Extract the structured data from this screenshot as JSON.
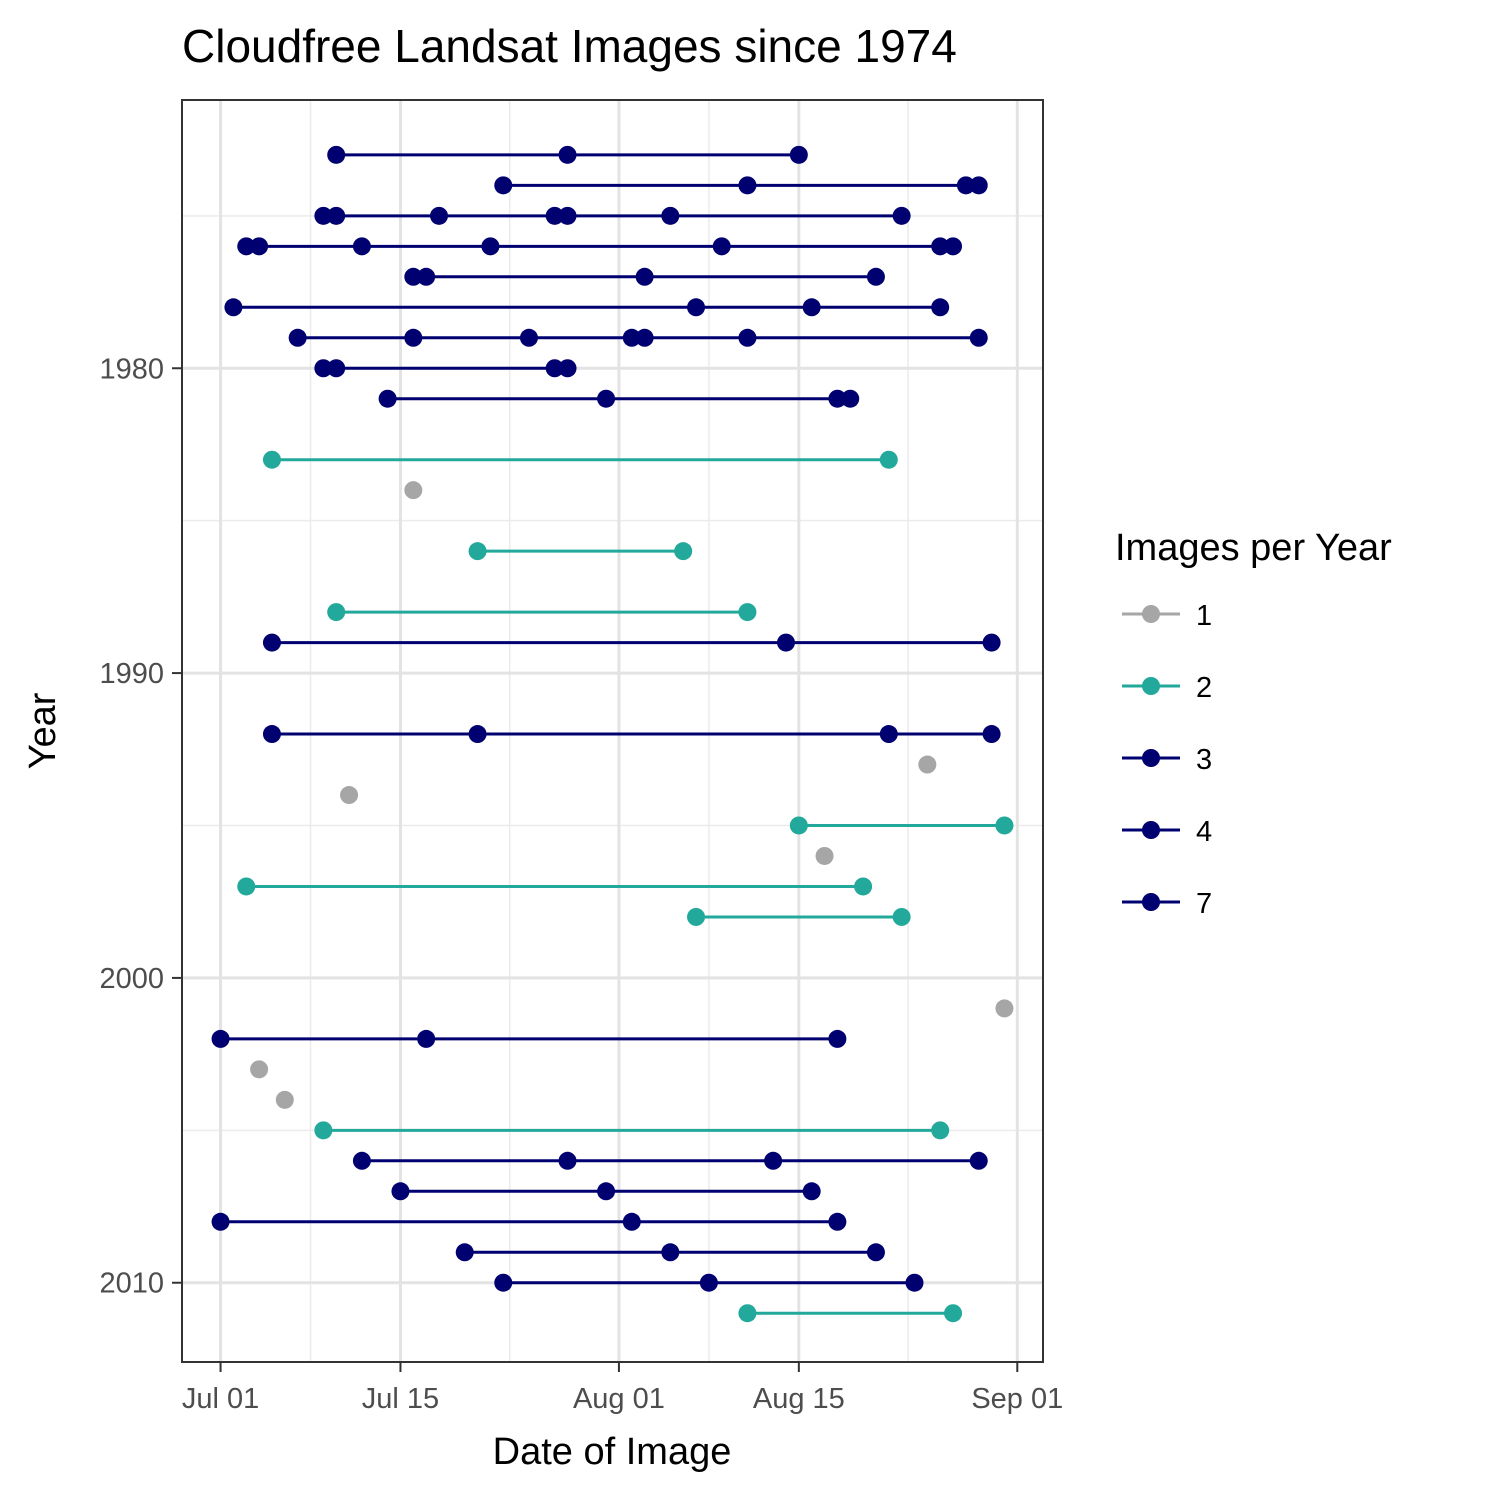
{
  "chart_data": {
    "type": "line",
    "title": "Cloudfree Landsat Images since 1974",
    "xlabel": "Date of Image",
    "ylabel": "Year",
    "x_ticks": [
      {
        "label": "Jul 01",
        "day": 0
      },
      {
        "label": "Jul 15",
        "day": 14
      },
      {
        "label": "Aug 01",
        "day": 31
      },
      {
        "label": "Aug 15",
        "day": 45
      },
      {
        "label": "Sep 01",
        "day": 62
      }
    ],
    "y_ticks": [
      1980,
      1990,
      2000,
      2010
    ],
    "xlim_days": [
      -3,
      64
    ],
    "ylim_year": [
      1971.2,
      2012.6
    ],
    "y_reversed": true,
    "grid": true,
    "legend": {
      "title": "Images per Year",
      "placement": "right",
      "entries": [
        {
          "label": "1",
          "color": "#A6A6A6"
        },
        {
          "label": "2",
          "color": "#22A99B"
        },
        {
          "label": "3",
          "color": "#000070"
        },
        {
          "label": "4",
          "color": "#000070"
        },
        {
          "label": "7",
          "color": "#000070"
        }
      ]
    },
    "series": [
      {
        "year": 1973,
        "images": 3,
        "days": [
          9,
          27,
          45
        ]
      },
      {
        "year": 1974,
        "images": 4,
        "days": [
          22,
          41,
          58,
          59
        ]
      },
      {
        "year": 1975,
        "images": 7,
        "days": [
          8,
          9,
          17,
          26,
          27,
          35,
          53
        ]
      },
      {
        "year": 1976,
        "images": 7,
        "days": [
          2,
          3,
          11,
          21,
          39,
          56,
          57
        ]
      },
      {
        "year": 1977,
        "images": 4,
        "days": [
          15,
          16,
          33,
          51
        ]
      },
      {
        "year": 1978,
        "images": 4,
        "days": [
          1,
          37,
          46,
          56
        ]
      },
      {
        "year": 1979,
        "images": 7,
        "days": [
          6,
          15,
          24,
          32,
          33,
          41,
          59
        ]
      },
      {
        "year": 1980,
        "images": 4,
        "days": [
          8,
          9,
          26,
          27
        ]
      },
      {
        "year": 1981,
        "images": 4,
        "days": [
          13,
          30,
          48,
          49
        ]
      },
      {
        "year": 1983,
        "images": 2,
        "days": [
          4,
          52
        ]
      },
      {
        "year": 1984,
        "images": 1,
        "days": [
          15
        ]
      },
      {
        "year": 1986,
        "images": 2,
        "days": [
          20,
          36
        ]
      },
      {
        "year": 1988,
        "images": 2,
        "days": [
          9,
          41
        ]
      },
      {
        "year": 1989,
        "images": 3,
        "days": [
          4,
          44,
          60
        ]
      },
      {
        "year": 1992,
        "images": 4,
        "days": [
          4,
          20,
          52,
          60
        ]
      },
      {
        "year": 1993,
        "images": 1,
        "days": [
          55
        ]
      },
      {
        "year": 1994,
        "images": 1,
        "days": [
          10
        ]
      },
      {
        "year": 1995,
        "images": 2,
        "days": [
          45,
          61
        ]
      },
      {
        "year": 1996,
        "images": 1,
        "days": [
          47
        ]
      },
      {
        "year": 1997,
        "images": 2,
        "days": [
          2,
          50
        ]
      },
      {
        "year": 1998,
        "images": 2,
        "days": [
          37,
          53
        ]
      },
      {
        "year": 2001,
        "images": 1,
        "days": [
          61
        ]
      },
      {
        "year": 2002,
        "images": 3,
        "days": [
          0,
          16,
          48
        ]
      },
      {
        "year": 2003,
        "images": 1,
        "days": [
          3
        ]
      },
      {
        "year": 2004,
        "images": 1,
        "days": [
          5
        ]
      },
      {
        "year": 2005,
        "images": 2,
        "days": [
          8,
          56
        ]
      },
      {
        "year": 2006,
        "images": 4,
        "days": [
          11,
          27,
          43,
          59
        ]
      },
      {
        "year": 2007,
        "images": 3,
        "days": [
          14,
          30,
          46
        ]
      },
      {
        "year": 2008,
        "images": 3,
        "days": [
          0,
          32,
          48
        ]
      },
      {
        "year": 2009,
        "images": 3,
        "days": [
          19,
          35,
          51
        ]
      },
      {
        "year": 2010,
        "images": 3,
        "days": [
          22,
          38,
          54
        ]
      },
      {
        "year": 2011,
        "images": 2,
        "days": [
          41,
          57
        ]
      }
    ]
  }
}
